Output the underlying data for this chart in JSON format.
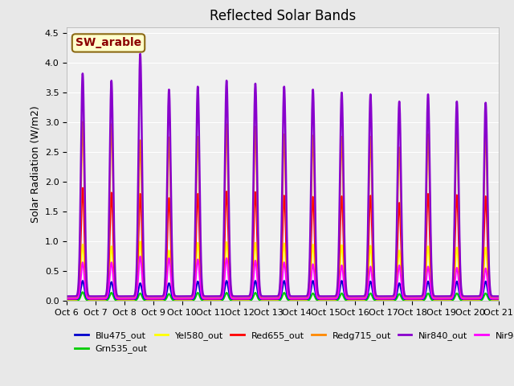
{
  "title": "Reflected Solar Bands",
  "ylabel": "Solar Radiation (W/m2)",
  "xlabel": "",
  "ylim": [
    0,
    4.6
  ],
  "yticks": [
    0.0,
    0.5,
    1.0,
    1.5,
    2.0,
    2.5,
    3.0,
    3.5,
    4.0,
    4.5
  ],
  "bg_color": "#e8e8e8",
  "plot_bg": "#f0f0f0",
  "annotation_text": "SW_arable",
  "annotation_color": "#8b0000",
  "annotation_bg": "#ffffcc",
  "annotation_edge": "#8b6914",
  "series": {
    "Blu475_out": {
      "color": "#0000cc",
      "lw": 1.5
    },
    "Grn535_out": {
      "color": "#00cc00",
      "lw": 1.5
    },
    "Yel580_out": {
      "color": "#ffff00",
      "lw": 1.5
    },
    "Red655_out": {
      "color": "#ff0000",
      "lw": 1.5
    },
    "Redg715_out": {
      "color": "#ff8800",
      "lw": 1.5
    },
    "Nir840_out": {
      "color": "#8800cc",
      "lw": 1.8
    },
    "Nir945_out": {
      "color": "#ff00ff",
      "lw": 1.5
    }
  },
  "n_days": 15,
  "day_labels": [
    "Oct 6",
    "Oct 7",
    "Oct 8",
    "Oct 9",
    "Oct 10",
    "Oct 11",
    "Oct 12",
    "Oct 13",
    "Oct 14",
    "Oct 15",
    "Oct 16",
    "Oct 17",
    "Oct 18",
    "Oct 19",
    "Oct 20",
    "Oct 21"
  ],
  "peaks_nir840": [
    3.82,
    3.7,
    4.15,
    3.55,
    3.6,
    3.7,
    3.65,
    3.6,
    3.55,
    3.5,
    3.47,
    3.35,
    3.47,
    3.35,
    3.33
  ],
  "peaks_nir945": [
    0.65,
    0.65,
    0.75,
    0.72,
    0.7,
    0.72,
    0.68,
    0.65,
    0.62,
    0.6,
    0.58,
    0.6,
    0.58,
    0.56,
    0.55
  ],
  "peaks_red655": [
    1.9,
    1.82,
    1.8,
    1.73,
    1.8,
    1.84,
    1.83,
    1.77,
    1.75,
    1.76,
    1.77,
    1.65,
    1.8,
    1.78,
    1.76
  ],
  "peaks_redg715": [
    3.01,
    2.97,
    2.7,
    2.75,
    2.76,
    2.97,
    2.93,
    2.8,
    2.78,
    2.76,
    2.76,
    2.58,
    2.8,
    2.88,
    2.89
  ],
  "peaks_yel580": [
    0.95,
    0.92,
    1.0,
    0.85,
    0.98,
    0.99,
    0.98,
    0.97,
    0.95,
    0.94,
    0.93,
    0.85,
    0.92,
    0.9,
    0.9
  ],
  "peaks_grn535": [
    0.15,
    0.14,
    0.13,
    0.12,
    0.14,
    0.14,
    0.14,
    0.14,
    0.13,
    0.13,
    0.13,
    0.12,
    0.13,
    0.13,
    0.13
  ],
  "peaks_blu475": [
    0.34,
    0.32,
    0.3,
    0.3,
    0.33,
    0.34,
    0.34,
    0.34,
    0.34,
    0.34,
    0.33,
    0.3,
    0.33,
    0.33,
    0.33
  ],
  "peak_sigma": 0.06,
  "baseline_nir840": 0.08,
  "baseline_nir945": 0.04,
  "baseline_redg715": 0.05,
  "baseline_red655": 0.04,
  "baseline_yel580": 0.02,
  "baseline_grn535": 0.01,
  "baseline_blu475": 0.03,
  "pts_per_day": 288
}
